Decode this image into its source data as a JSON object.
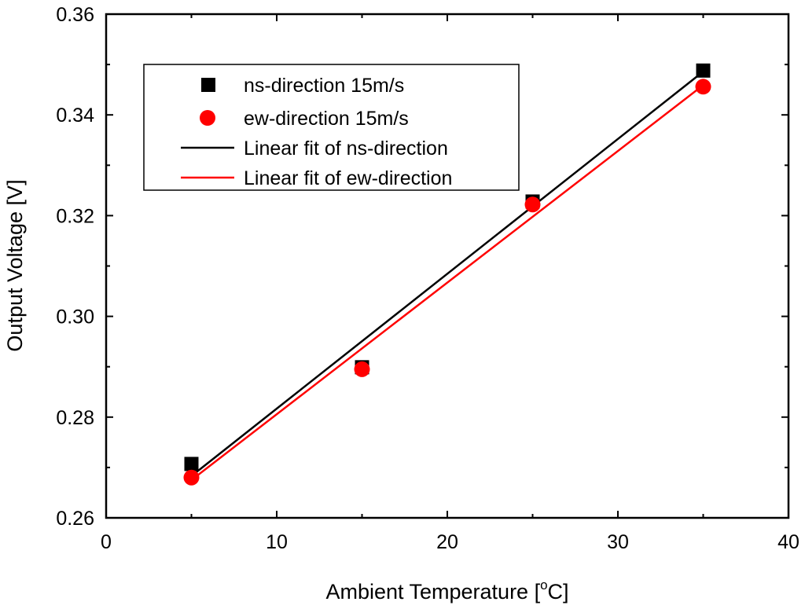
{
  "chart_data": {
    "type": "scatter",
    "xlabel": "Ambient Temperature [",
    "xlabel_sup": "o",
    "xlabel_tail": "C]",
    "ylabel": "Output Voltage [V]",
    "xlim": [
      0,
      40
    ],
    "ylim": [
      0.26,
      0.36
    ],
    "xticks": [
      "0",
      "10",
      "20",
      "30",
      "40"
    ],
    "yticks": [
      "0.26",
      "0.28",
      "0.30",
      "0.32",
      "0.34",
      "0.36"
    ],
    "grid": false,
    "legend_position": "top-left",
    "series": [
      {
        "name": "ns-direction 15m/s",
        "kind": "points",
        "marker": "square",
        "color": "#000000",
        "x": [
          5,
          15,
          25,
          35
        ],
        "y": [
          0.2707,
          0.2899,
          0.3228,
          0.3488
        ]
      },
      {
        "name": "ew-direction 15m/s",
        "kind": "points",
        "marker": "circle",
        "color": "#ff0000",
        "x": [
          5,
          15,
          25,
          35
        ],
        "y": [
          0.268,
          0.2895,
          0.3222,
          0.3456
        ]
      },
      {
        "name": "Linear fit of ns-direction",
        "kind": "line",
        "color": "#000000",
        "x": [
          5,
          35
        ],
        "y": [
          0.2683,
          0.3486
        ]
      },
      {
        "name": "Linear fit of ew-direction",
        "kind": "line",
        "color": "#ff0000",
        "x": [
          5,
          35
        ],
        "y": [
          0.2675,
          0.3459
        ]
      }
    ]
  }
}
